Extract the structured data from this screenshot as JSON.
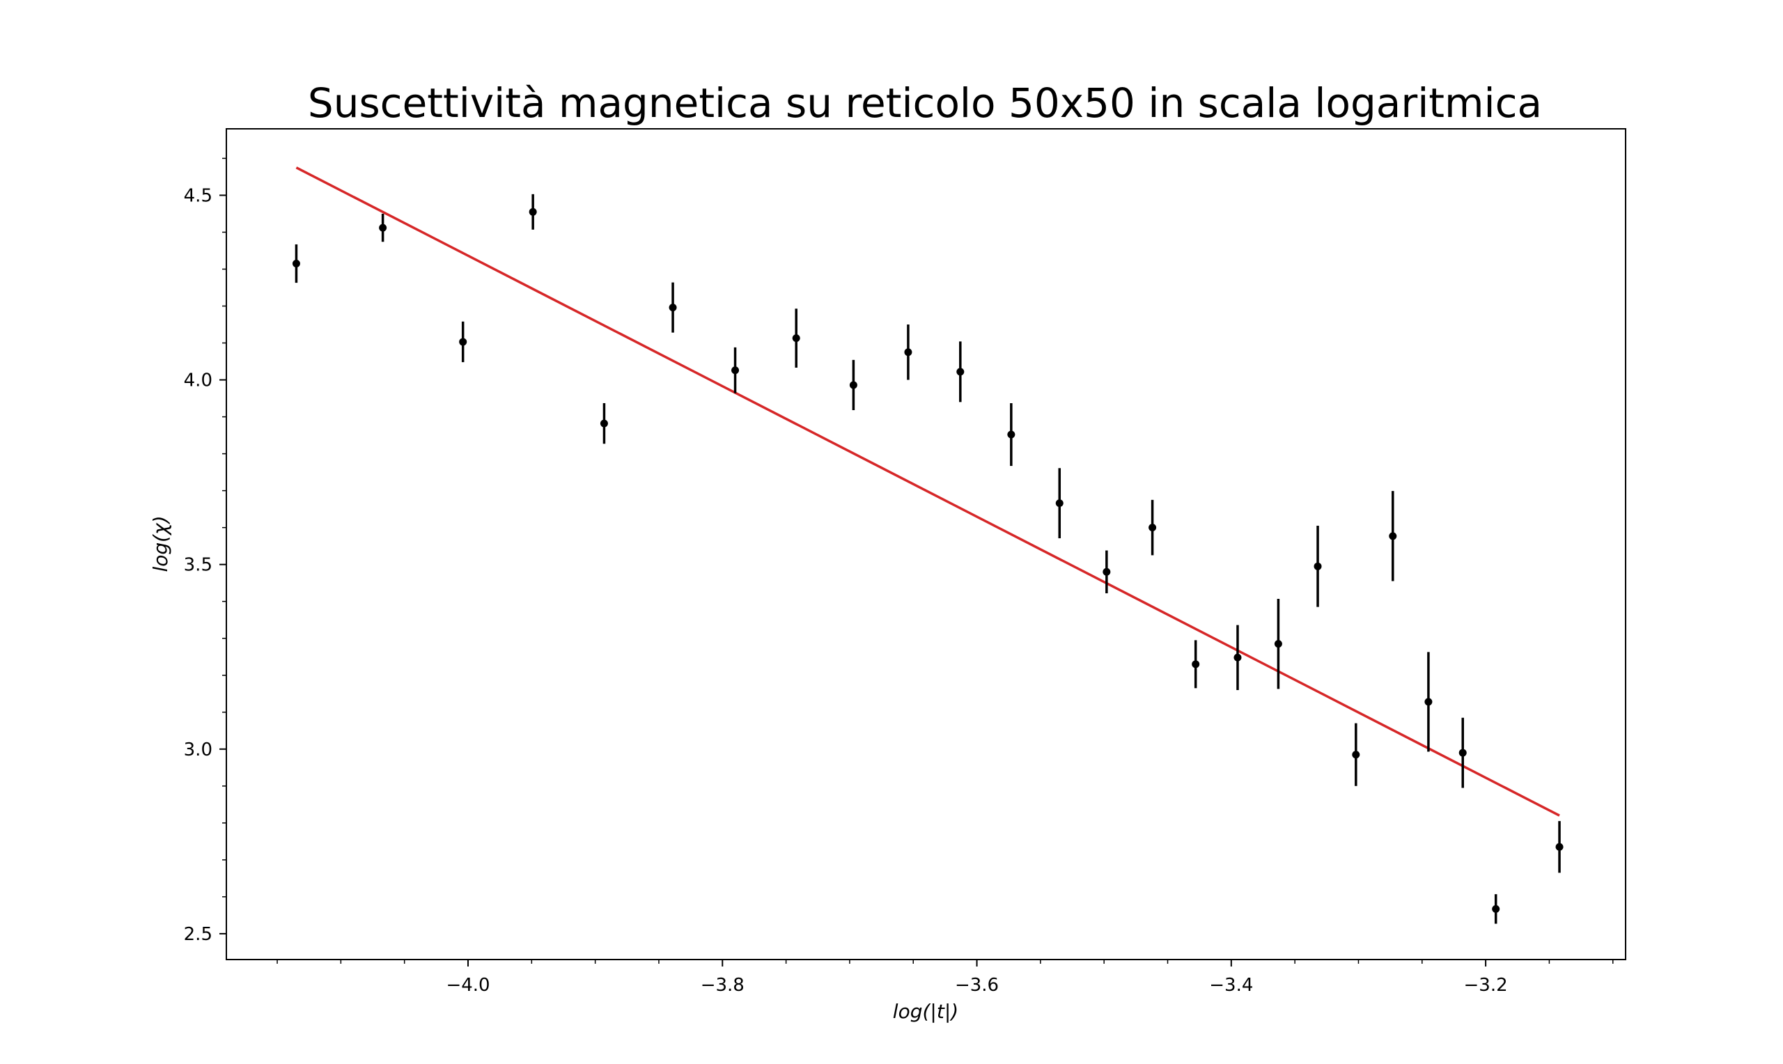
{
  "chart_data": {
    "type": "scatter",
    "title": "Suscettività magnetica su reticolo 50x50 in scala logaritmica",
    "xlabel": "log(|t|)",
    "ylabel": "log(χ)",
    "xlim": [
      -4.19,
      -3.09
    ],
    "ylim": [
      2.43,
      4.68
    ],
    "x_ticks": [
      -4.0,
      -3.8,
      -3.6,
      -3.4,
      -3.2
    ],
    "x_tick_labels": [
      "−4.0",
      "−3.8",
      "−3.6",
      "−3.4",
      "−3.2"
    ],
    "y_ticks": [
      2.5,
      3.0,
      3.5,
      4.0,
      4.5
    ],
    "y_tick_labels": [
      "2.5",
      "3.0",
      "3.5",
      "4.0",
      "4.5"
    ],
    "grid": false,
    "colors": {
      "points": "#000000",
      "fit": "#d62728"
    },
    "series": [
      {
        "type": "errorbar",
        "x": [
          -4.135,
          -4.067,
          -4.004,
          -3.949,
          -3.893,
          -3.839,
          -3.79,
          -3.742,
          -3.697,
          -3.654,
          -3.613,
          -3.573,
          -3.535,
          -3.498,
          -3.462,
          -3.428,
          -3.395,
          -3.363,
          -3.332,
          -3.302,
          -3.273,
          -3.245,
          -3.218,
          -3.192,
          -3.142
        ],
        "y": [
          4.315,
          4.412,
          4.103,
          4.455,
          3.882,
          4.196,
          4.026,
          4.113,
          3.986,
          4.075,
          4.022,
          3.852,
          3.666,
          3.48,
          3.6,
          3.23,
          3.248,
          3.285,
          3.495,
          2.985,
          3.577,
          3.128,
          2.99,
          2.567,
          2.735
        ],
        "yerr": [
          0.052,
          0.038,
          0.055,
          0.048,
          0.055,
          0.068,
          0.062,
          0.08,
          0.068,
          0.075,
          0.082,
          0.085,
          0.095,
          0.058,
          0.075,
          0.065,
          0.088,
          0.122,
          0.11,
          0.085,
          0.122,
          0.135,
          0.095,
          0.04,
          0.07
        ]
      },
      {
        "type": "line",
        "x": [
          -4.135,
          -3.142
        ],
        "y": [
          4.575,
          2.82
        ]
      }
    ]
  }
}
